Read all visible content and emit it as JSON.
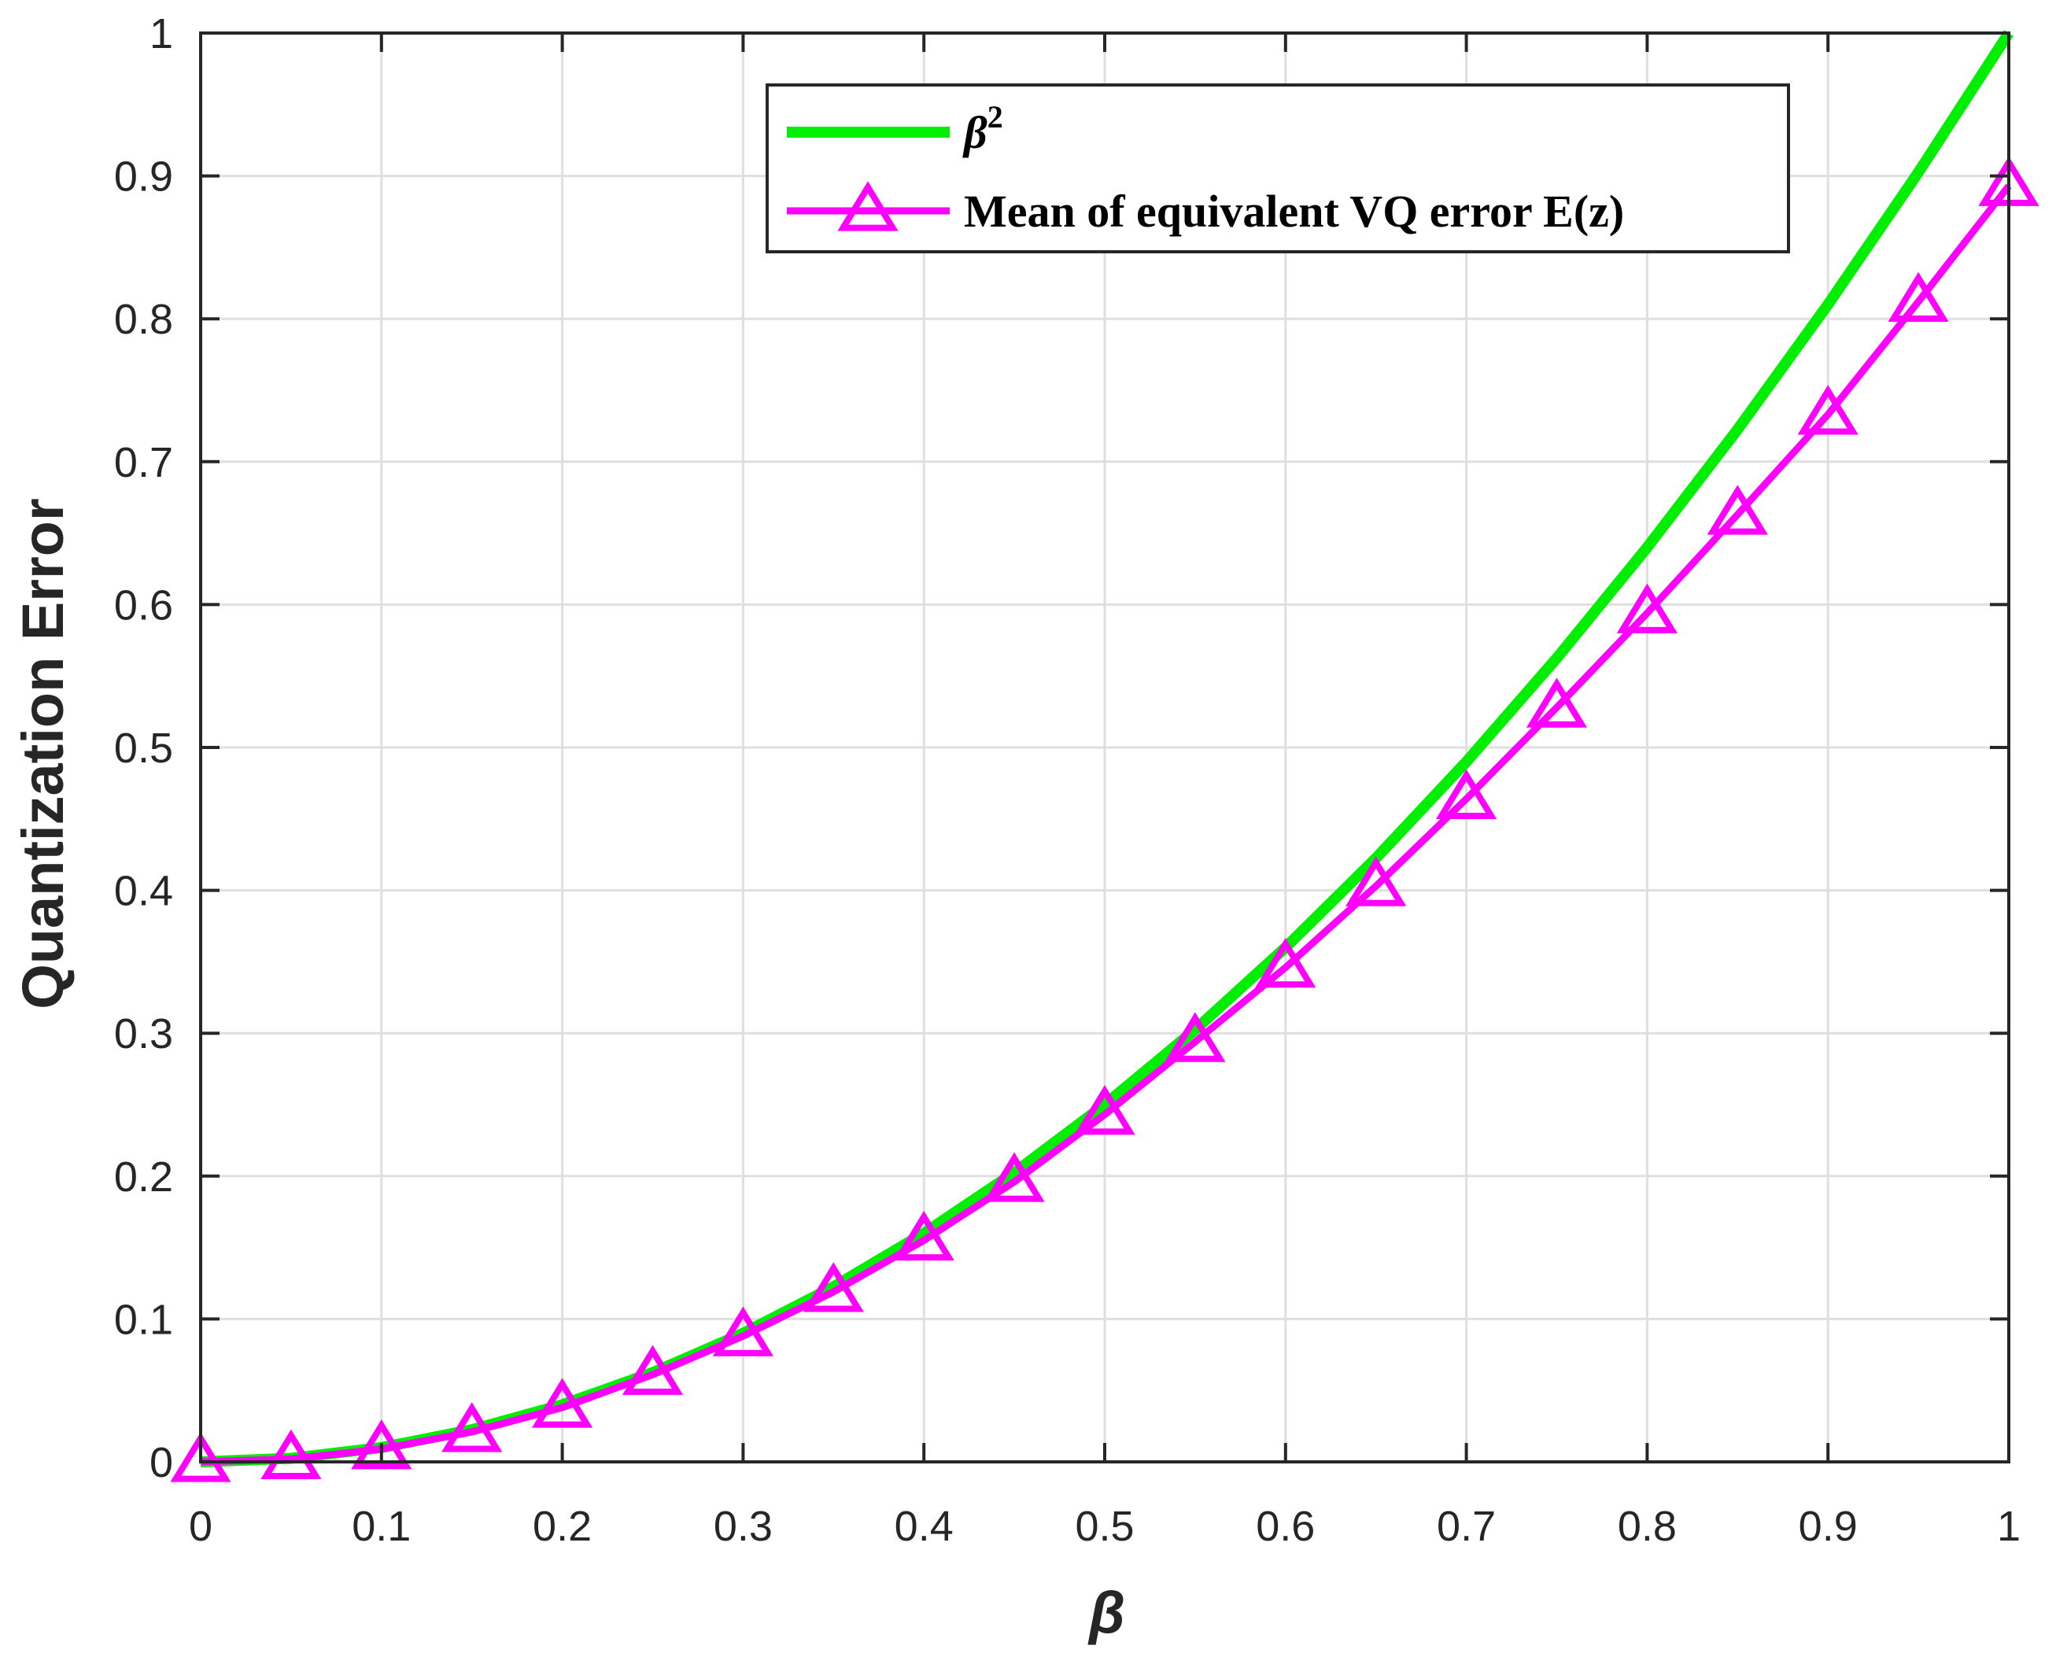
{
  "chart_data": {
    "type": "line",
    "xlabel": "β",
    "ylabel": "Quantization Error",
    "xlim": [
      0,
      1
    ],
    "ylim": [
      0,
      1
    ],
    "x_ticks": [
      "0",
      "0.1",
      "0.2",
      "0.3",
      "0.4",
      "0.5",
      "0.6",
      "0.7",
      "0.8",
      "0.9",
      "1"
    ],
    "y_ticks": [
      "0",
      "0.1",
      "0.2",
      "0.3",
      "0.4",
      "0.5",
      "0.6",
      "0.7",
      "0.8",
      "0.9",
      "1"
    ],
    "grid": true,
    "legend_position": "top-right",
    "series": [
      {
        "name": "β",
        "name_superscript": "2",
        "color": "#00ee00",
        "marker": "none",
        "x": [
          0,
          0.05,
          0.1,
          0.15,
          0.2,
          0.25,
          0.3,
          0.35,
          0.4,
          0.45,
          0.5,
          0.55,
          0.6,
          0.65,
          0.7,
          0.75,
          0.8,
          0.85,
          0.9,
          0.95,
          1
        ],
        "values": [
          0,
          0.0025,
          0.01,
          0.0225,
          0.04,
          0.0625,
          0.09,
          0.1225,
          0.16,
          0.2025,
          0.25,
          0.3025,
          0.36,
          0.4225,
          0.49,
          0.5625,
          0.64,
          0.7225,
          0.81,
          0.9025,
          1
        ]
      },
      {
        "name": "Mean of equivalent VQ error E(z)",
        "color": "#ff00ff",
        "marker": "triangle",
        "x": [
          0,
          0.05,
          0.1,
          0.15,
          0.2,
          0.25,
          0.3,
          0.35,
          0.4,
          0.45,
          0.5,
          0.55,
          0.6,
          0.65,
          0.7,
          0.75,
          0.8,
          0.85,
          0.9,
          0.95,
          1
        ],
        "values": [
          0,
          0.002,
          0.009,
          0.021,
          0.038,
          0.061,
          0.088,
          0.119,
          0.155,
          0.196,
          0.243,
          0.294,
          0.346,
          0.403,
          0.464,
          0.528,
          0.594,
          0.663,
          0.733,
          0.812,
          0.893
        ]
      }
    ]
  }
}
